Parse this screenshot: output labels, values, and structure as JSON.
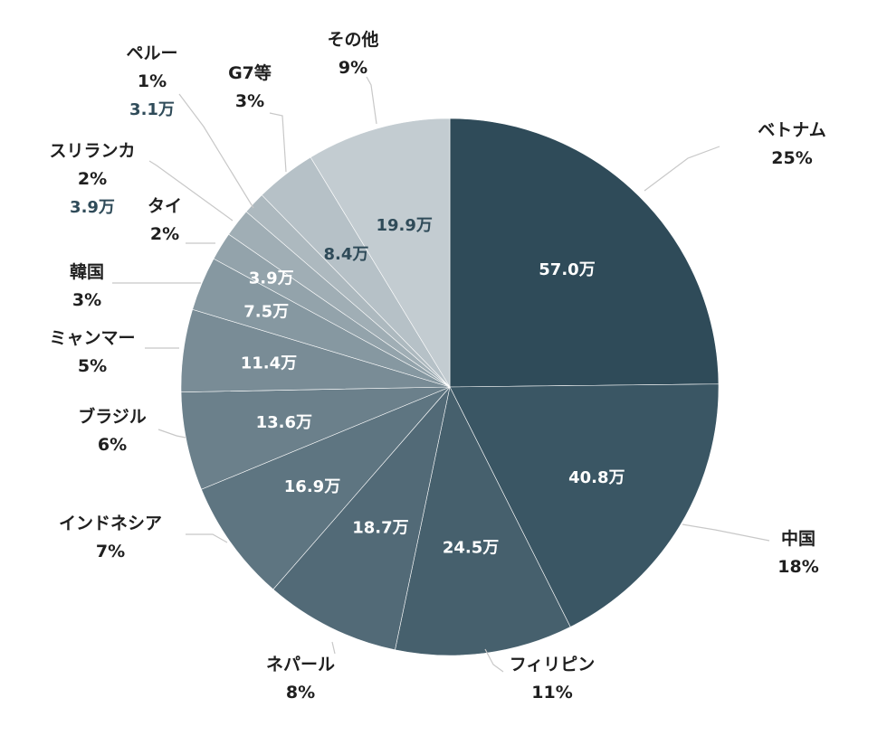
{
  "chart_data": {
    "type": "pie",
    "start": "12 o'clock, clockwise",
    "slices": [
      {
        "name": "ベトナム",
        "percent": "25%",
        "value": 57.0,
        "value_label": "57.0万",
        "color": "#2f4b59",
        "text_color": "#ffffff"
      },
      {
        "name": "中国",
        "percent": "18%",
        "value": 40.8,
        "value_label": "40.8万",
        "color": "#3a5664",
        "text_color": "#ffffff"
      },
      {
        "name": "フィリピン",
        "percent": "11%",
        "value": 24.5,
        "value_label": "24.5万",
        "color": "#46606d",
        "text_color": "#ffffff"
      },
      {
        "name": "ネパール",
        "percent": "8%",
        "value": 18.7,
        "value_label": "18.7万",
        "color": "#526a77",
        "text_color": "#ffffff"
      },
      {
        "name": "インドネシア",
        "percent": "7%",
        "value": 16.9,
        "value_label": "16.9万",
        "color": "#5e7581",
        "text_color": "#ffffff"
      },
      {
        "name": "ブラジル",
        "percent": "6%",
        "value": 13.6,
        "value_label": "13.6万",
        "color": "#6b808b",
        "text_color": "#ffffff"
      },
      {
        "name": "ミャンマー",
        "percent": "5%",
        "value": 11.4,
        "value_label": "11.4万",
        "color": "#798c96",
        "text_color": "#ffffff"
      },
      {
        "name": "韓国",
        "percent": "3%",
        "value": 7.5,
        "value_label": "7.5万",
        "color": "#8698a1",
        "text_color": "#ffffff"
      },
      {
        "name": "タイ",
        "percent": "2%",
        "value": 3.9,
        "value_label": "3.9万",
        "color": "#93a3ab",
        "text_color": "#ffffff"
      },
      {
        "name": "スリランカ",
        "percent": "2%",
        "value": 3.9,
        "value_label": "3.9万",
        "color": "#a0aeb5",
        "text_color": "#2f4b59"
      },
      {
        "name": "ペルー",
        "percent": "1%",
        "value": 3.1,
        "value_label": "3.1万",
        "color": "#adb9bf",
        "text_color": "#2f4b59"
      },
      {
        "name": "G7等",
        "percent": "3%",
        "value": 8.4,
        "value_label": "8.4万",
        "color": "#b6c1c7",
        "text_color": "#2f4b59"
      },
      {
        "name": "その他",
        "percent": "9%",
        "value": 19.9,
        "value_label": "19.9万",
        "color": "#c3ccd1",
        "text_color": "#2f4b59"
      }
    ]
  }
}
